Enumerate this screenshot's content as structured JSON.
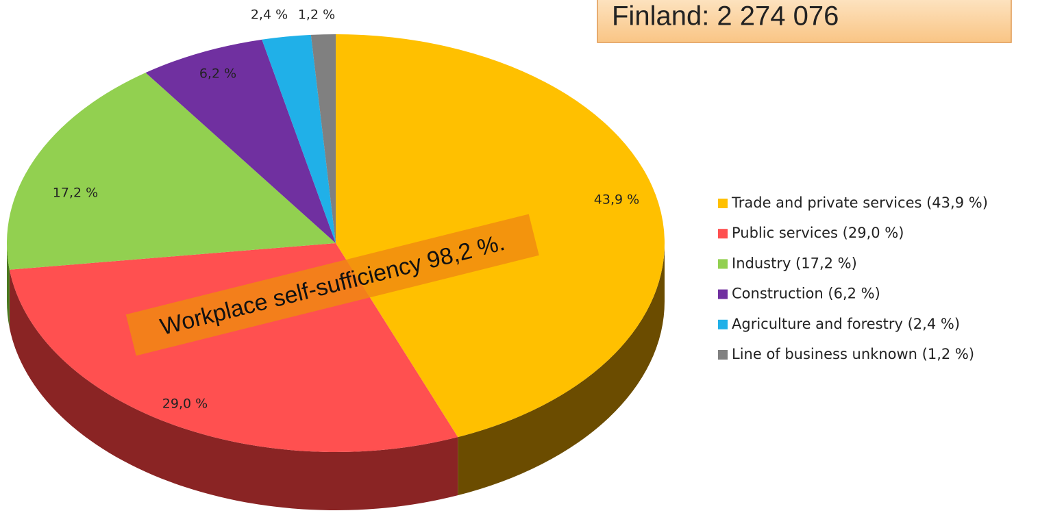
{
  "chart_data": {
    "type": "pie",
    "title": "Finland: 2 274 076",
    "annotation": "Workplace self-sufficiency 98,2 %.",
    "categories": [
      "Trade and private services (43,9 %)",
      "Public services  (29,0 %)",
      "Industry (17,2 %)",
      "Construction (6,2 %)",
      "Agriculture and forestry  (2,4 %)",
      "Line of business unknown (1,2 %)"
    ],
    "values": [
      43.9,
      29.0,
      17.2,
      6.2,
      2.4,
      1.2
    ],
    "value_labels": [
      "43,9 %",
      "29,0 %",
      "17,2 %",
      "6,2 %",
      "2,4 %",
      "1,2 %"
    ],
    "colors": [
      "#ffc000",
      "#ff5050",
      "#92d050",
      "#7030a0",
      "#20b0e8",
      "#808080"
    ],
    "side_colors": [
      "#6b4c00",
      "#8a2424",
      "#4a7a20",
      "#3a1060",
      "#106080",
      "#404040"
    ],
    "legend": "right"
  }
}
